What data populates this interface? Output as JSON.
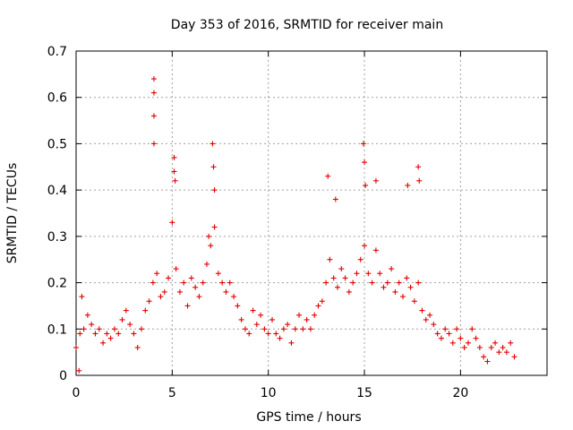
{
  "chart_data": {
    "type": "scatter",
    "title": "Day 353 of 2016, SRMTID for receiver main",
    "xlabel": "GPS time / hours",
    "ylabel": "SRMTID / TECUs",
    "xlim": [
      0,
      24.5
    ],
    "ylim": [
      0,
      0.7
    ],
    "xticks": [
      0,
      5,
      10,
      15,
      20
    ],
    "xtick_labels": [
      "0",
      "5",
      "10",
      "15",
      "20"
    ],
    "yticks": [
      0,
      0.1,
      0.2,
      0.3,
      0.4,
      0.5,
      0.6,
      0.7
    ],
    "ytick_labels": [
      "0",
      "0.1",
      "0.2",
      "0.3",
      "0.4",
      "0.5",
      "0.6",
      "0.7"
    ],
    "grid": true,
    "marker": "plus",
    "color": "#e00000",
    "series": [
      {
        "name": "SRMTID",
        "x": [
          0.0,
          0.2,
          0.4,
          0.6,
          0.8,
          1.0,
          1.2,
          1.4,
          1.6,
          1.8,
          2.0,
          2.2,
          2.4,
          2.6,
          2.8,
          3.0,
          3.2,
          3.4,
          3.6,
          3.8,
          4.0,
          4.2,
          4.4,
          4.6,
          4.8,
          5.0,
          5.2,
          5.4,
          5.6,
          5.8,
          6.0,
          6.2,
          6.4,
          6.6,
          6.8,
          7.0,
          7.2,
          7.4,
          7.6,
          7.8,
          8.0,
          8.2,
          8.4,
          8.6,
          8.8,
          9.0,
          9.2,
          9.4,
          9.6,
          9.8,
          10.0,
          10.2,
          10.4,
          10.6,
          10.8,
          11.0,
          11.2,
          11.4,
          11.6,
          11.8,
          12.0,
          12.2,
          12.4,
          12.6,
          12.8,
          13.0,
          13.2,
          13.4,
          13.6,
          13.8,
          14.0,
          14.2,
          14.4,
          14.6,
          14.8,
          15.0,
          15.2,
          15.4,
          15.6,
          15.8,
          16.0,
          16.2,
          16.4,
          16.6,
          16.8,
          17.0,
          17.2,
          17.4,
          17.6,
          17.8,
          18.0,
          18.2,
          18.4,
          18.6,
          18.8,
          19.0,
          19.2,
          19.4,
          19.6,
          19.8,
          20.0,
          20.2,
          20.4,
          20.6,
          20.8,
          21.0,
          21.2,
          21.4,
          21.6,
          21.8,
          22.0,
          22.2,
          22.4,
          22.6,
          22.8,
          4.05,
          4.05,
          4.05,
          4.05,
          5.1,
          5.1,
          5.15,
          7.1,
          7.15,
          7.2,
          14.95,
          15.0,
          15.05,
          17.8,
          17.85,
          13.1,
          15.6,
          17.25,
          6.9,
          13.5,
          0.15,
          0.3
        ],
        "y": [
          0.06,
          0.09,
          0.1,
          0.13,
          0.11,
          0.09,
          0.1,
          0.07,
          0.09,
          0.08,
          0.1,
          0.09,
          0.12,
          0.14,
          0.11,
          0.09,
          0.06,
          0.1,
          0.14,
          0.16,
          0.2,
          0.22,
          0.17,
          0.18,
          0.21,
          0.33,
          0.23,
          0.18,
          0.2,
          0.15,
          0.21,
          0.19,
          0.17,
          0.2,
          0.24,
          0.28,
          0.32,
          0.22,
          0.2,
          0.18,
          0.2,
          0.17,
          0.15,
          0.12,
          0.1,
          0.09,
          0.14,
          0.11,
          0.13,
          0.1,
          0.09,
          0.12,
          0.09,
          0.08,
          0.1,
          0.11,
          0.07,
          0.1,
          0.13,
          0.1,
          0.12,
          0.1,
          0.13,
          0.15,
          0.16,
          0.2,
          0.25,
          0.21,
          0.19,
          0.23,
          0.21,
          0.18,
          0.2,
          0.22,
          0.25,
          0.28,
          0.22,
          0.2,
          0.27,
          0.22,
          0.19,
          0.2,
          0.23,
          0.18,
          0.2,
          0.17,
          0.21,
          0.19,
          0.16,
          0.2,
          0.14,
          0.12,
          0.13,
          0.11,
          0.09,
          0.08,
          0.1,
          0.09,
          0.07,
          0.1,
          0.08,
          0.06,
          0.07,
          0.1,
          0.08,
          0.06,
          0.04,
          0.03,
          0.06,
          0.07,
          0.05,
          0.06,
          0.05,
          0.07,
          0.04,
          0.64,
          0.61,
          0.56,
          0.5,
          0.47,
          0.44,
          0.42,
          0.5,
          0.45,
          0.4,
          0.5,
          0.46,
          0.41,
          0.45,
          0.42,
          0.43,
          0.42,
          0.41,
          0.3,
          0.38,
          0.01,
          0.17
        ]
      }
    ]
  }
}
